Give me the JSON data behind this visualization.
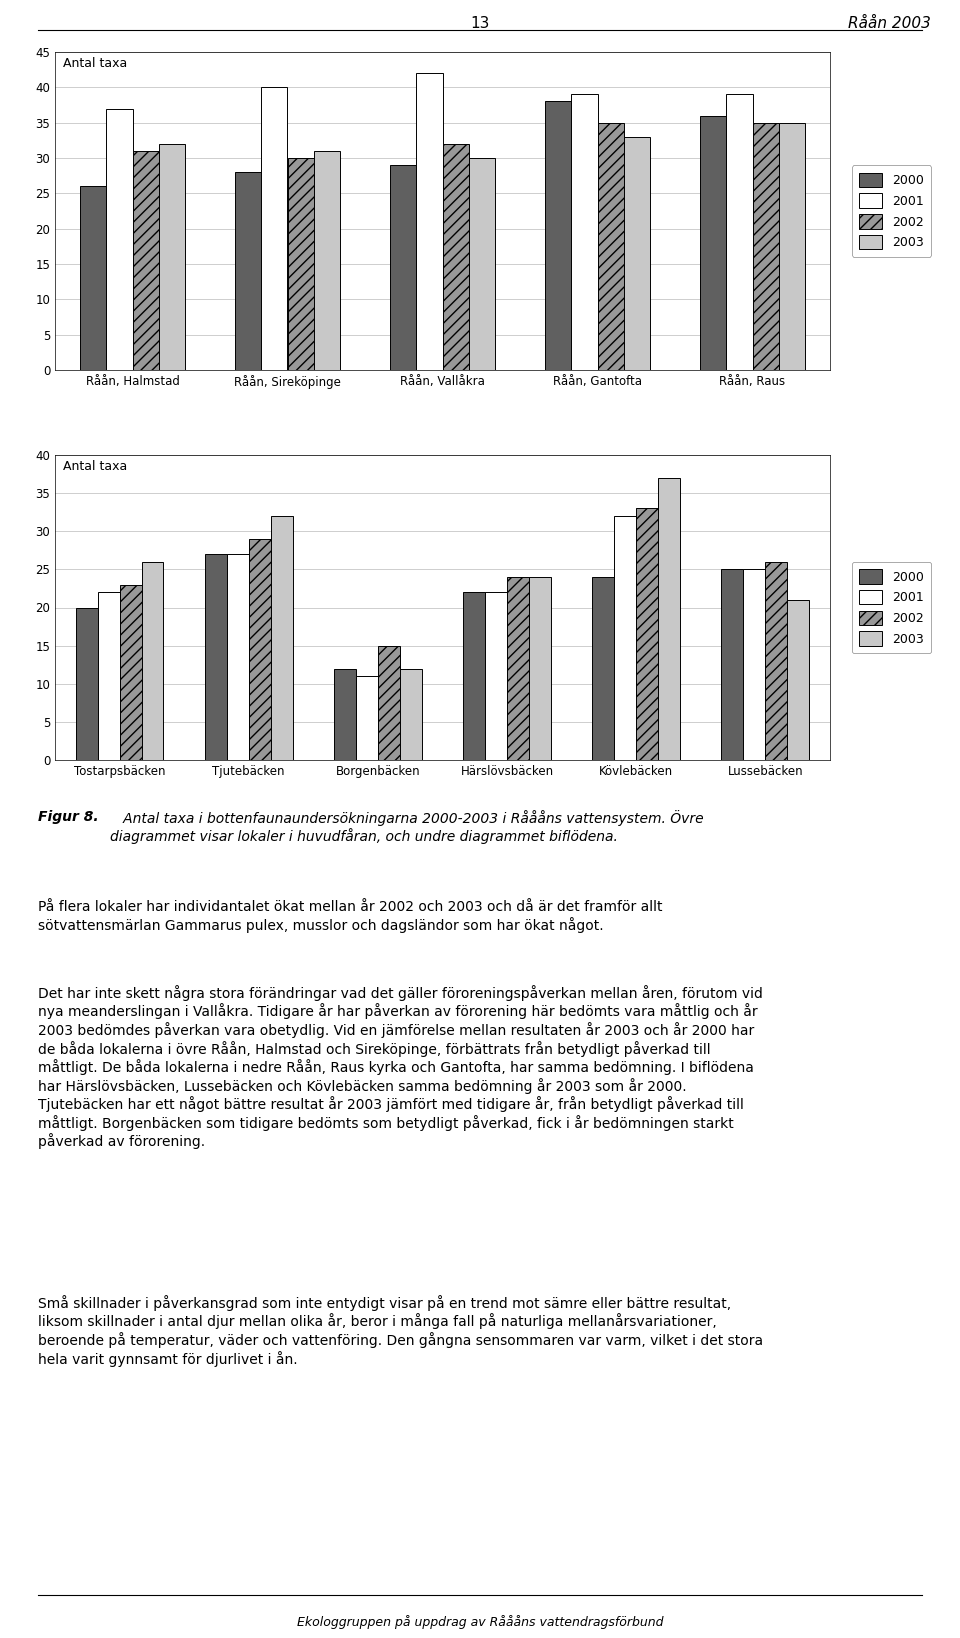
{
  "chart1": {
    "ylabel": "Antal taxa",
    "ylim": [
      0,
      45
    ],
    "yticks": [
      0,
      5,
      10,
      15,
      20,
      25,
      30,
      35,
      40,
      45
    ],
    "categories": [
      "Råån, Halmstad",
      "Råån, Sireköpinge",
      "Råån, Vallåkra",
      "Råån, Gantofta",
      "Råån, Raus"
    ],
    "series": {
      "2000": [
        26,
        28,
        29,
        38,
        36
      ],
      "2001": [
        37,
        40,
        42,
        39,
        39
      ],
      "2002": [
        31,
        30,
        32,
        35,
        35
      ],
      "2003": [
        32,
        31,
        30,
        33,
        35
      ]
    }
  },
  "chart2": {
    "ylabel": "Antal taxa",
    "ylim": [
      0,
      40
    ],
    "yticks": [
      0,
      5,
      10,
      15,
      20,
      25,
      30,
      35,
      40
    ],
    "categories": [
      "Tostarpsbäcken",
      "Tjutebäcken",
      "Borgenbäcken",
      "Härslövsbäcken",
      "Kövlebäcken",
      "Lussebäcken"
    ],
    "series": {
      "2000": [
        20,
        27,
        12,
        22,
        24,
        25
      ],
      "2001": [
        22,
        27,
        11,
        22,
        32,
        25
      ],
      "2002": [
        23,
        29,
        15,
        24,
        33,
        26
      ],
      "2003": [
        26,
        32,
        12,
        24,
        37,
        21
      ]
    }
  },
  "bar_styles": {
    "2000": {
      "color": "#606060",
      "hatch": null,
      "edgecolor": "#000000"
    },
    "2001": {
      "color": "#ffffff",
      "hatch": null,
      "edgecolor": "#000000"
    },
    "2002": {
      "color": "#989898",
      "hatch": "///",
      "edgecolor": "#000000"
    },
    "2003": {
      "color": "#c8c8c8",
      "hatch": null,
      "edgecolor": "#000000"
    }
  },
  "bar_width": 0.17,
  "legend_years": [
    "2000",
    "2001",
    "2002",
    "2003"
  ],
  "figsize": [
    9.6,
    16.38
  ],
  "dpi": 100,
  "header_num": "13",
  "header_title": "Råån 2003",
  "caption_bold": "Figur 8.",
  "caption_italic": "   Antal taxa i bottenfaunaundersökningarna 2000-2003 i Råååns vattensystem. Övre\ndiagrammet visar lokaler i huvudfåran, och undre diagrammet biflödena.",
  "para1": "På flera lokaler har individantalet ökat mellan år 2002 och 2003 och då är det framför allt\nsötvattensmärlan Gammarus pulex, musslor och dagsländor som har ökat något.",
  "para2": "Det har inte skett några stora förändringar vad det gäller föroreningspåverkan mellan åren, förutom vid\nnya meanderslingan i Vallåkra. Tidigare år har påverkan av förorening här bedömts vara måttlig och år\n2003 bedömdes påverkan vara obetydlig. Vid en jämförelse mellan resultaten år 2003 och år 2000 har\nde båda lokalerna i övre Råån, Halmstad och Sireköpinge, förbättrats från betydligt påverkad till\nmåttligt. De båda lokalerna i nedre Råån, Raus kyrka och Gantofta, har samma bedömning. I biflödena\nhar Härslövsbäcken, Lussebäcken och Kövlebäcken samma bedömning år 2003 som år 2000.\nTjutebäcken har ett något bättre resultat år 2003 jämfört med tidigare år, från betydligt påverkad till\nmåttligt. Borgenbäcken som tidigare bedömts som betydligt påverkad, fick i år bedömningen starkt\npåverkad av förorening.",
  "para3": "Små skillnader i påverkansgrad som inte entydigt visar på en trend mot sämre eller bättre resultat,\nliksom skillnader i antal djur mellan olika år, beror i många fall på naturliga mellanårsvariationer,\nberoende på temperatur, väder och vattenföring. Den gångna sensommaren var varm, vilket i det stora\nhela varit gynnsamt för djurlivet i ån.",
  "footer_text": "Ekologgruppen på uppdrag av Råååns vattendragsförbund"
}
